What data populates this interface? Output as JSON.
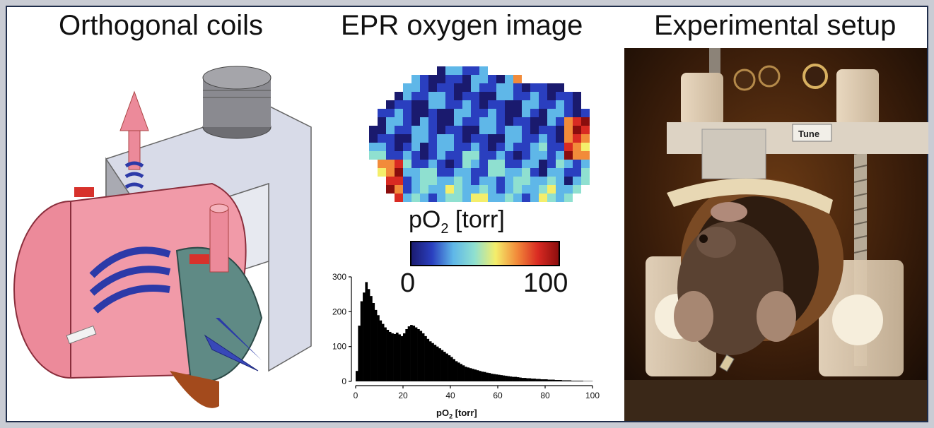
{
  "panels": {
    "coils": {
      "title": "Orthogonal coils"
    },
    "epr": {
      "title": "EPR oxygen image"
    },
    "setup": {
      "title": "Experimental setup",
      "device_label": "Tune"
    }
  },
  "colorbar": {
    "label_main": "pO",
    "label_sub": "2",
    "label_unit": " [torr]",
    "min_label": "0",
    "max_label": "100",
    "colors": [
      "#1a1a6e",
      "#2a3fbf",
      "#5fb7e8",
      "#8fe0d0",
      "#f4ee6b",
      "#f28b3a",
      "#d92a22",
      "#8a0d0d"
    ]
  },
  "chart_data": {
    "type": "bar",
    "title": "",
    "xlabel_main": "pO",
    "xlabel_sub": "2",
    "xlabel_unit": " [torr]",
    "ylabel": "",
    "xlim": [
      0,
      100
    ],
    "ylim": [
      0,
      300
    ],
    "x_ticks": [
      "0",
      "20",
      "40",
      "60",
      "80",
      "100"
    ],
    "y_ticks": [
      "0",
      "100",
      "200",
      "300"
    ],
    "bin_width": 1,
    "values": [
      30,
      160,
      230,
      255,
      285,
      265,
      245,
      225,
      205,
      190,
      175,
      165,
      155,
      148,
      142,
      138,
      136,
      140,
      135,
      130,
      138,
      150,
      158,
      162,
      160,
      155,
      150,
      145,
      138,
      130,
      122,
      115,
      110,
      105,
      100,
      95,
      90,
      85,
      80,
      75,
      70,
      64,
      58,
      54,
      50,
      46,
      42,
      40,
      38,
      36,
      34,
      32,
      30,
      28,
      27,
      25,
      24,
      22,
      21,
      20,
      19,
      18,
      17,
      16,
      15,
      14,
      13,
      13,
      12,
      11,
      10,
      10,
      9,
      9,
      8,
      8,
      7,
      7,
      6,
      6,
      6,
      5,
      5,
      5,
      4,
      4,
      4,
      3,
      3,
      3,
      3,
      2,
      2,
      2,
      2,
      2,
      1,
      1,
      1,
      1
    ]
  }
}
